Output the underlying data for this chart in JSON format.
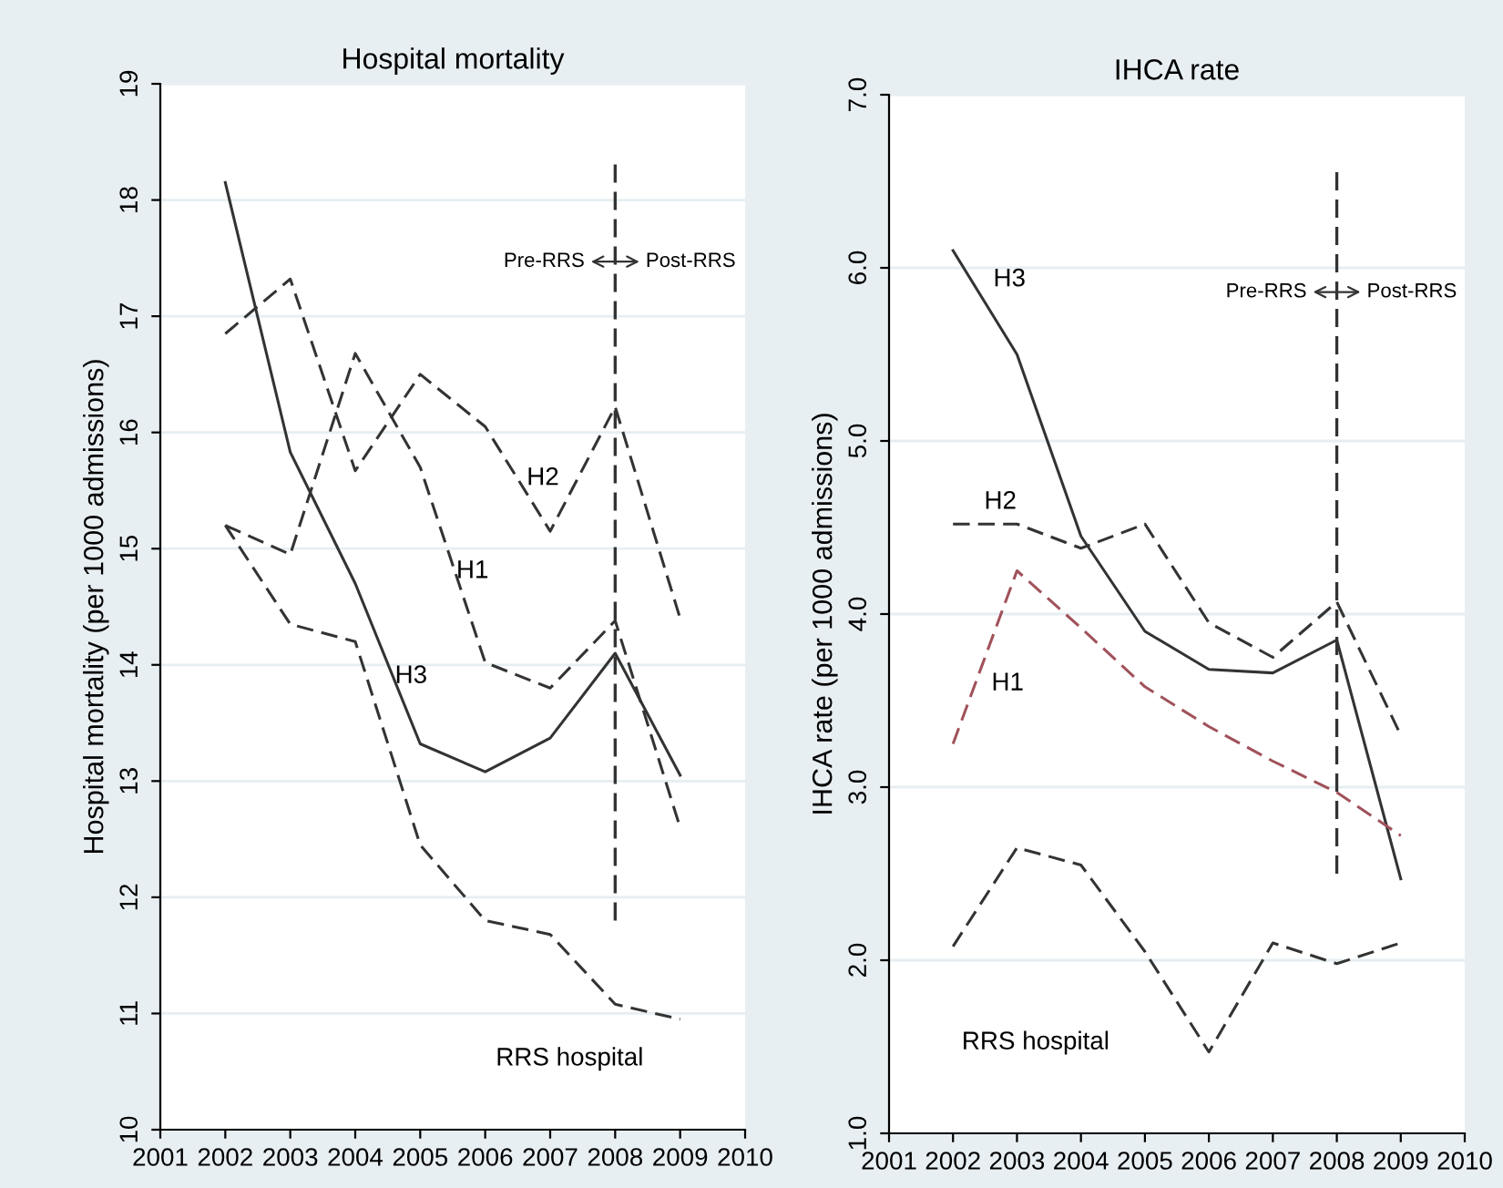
{
  "chart_data": [
    {
      "type": "line",
      "title": "Hospital mortality",
      "ylabel": "Hospital mortality (per 1000 admissions)",
      "x": [
        2002,
        2003,
        2004,
        2005,
        2006,
        2007,
        2008,
        2009
      ],
      "series": [
        {
          "name": "H3",
          "color": "#333333",
          "line_style": "solid",
          "values": [
            18.15,
            15.83,
            14.7,
            13.32,
            13.08,
            13.37,
            14.1,
            13.05
          ]
        },
        {
          "name": "H2",
          "color": "#333333",
          "line_style": "dashed",
          "values": [
            16.85,
            17.32,
            15.67,
            16.5,
            16.05,
            15.15,
            16.22,
            14.4
          ]
        },
        {
          "name": "H1",
          "color": "#333333",
          "line_style": "dashed",
          "values": [
            15.2,
            14.95,
            16.68,
            15.7,
            14.02,
            13.8,
            14.38,
            12.6
          ]
        },
        {
          "name": "RRS hospital",
          "color": "#333333",
          "line_style": "dashed",
          "values": [
            15.2,
            14.35,
            14.2,
            12.45,
            11.8,
            11.68,
            11.08,
            10.95
          ]
        }
      ],
      "xlim": [
        2001,
        2010
      ],
      "xticks": [
        2001,
        2002,
        2003,
        2004,
        2005,
        2006,
        2007,
        2008,
        2009,
        2010
      ],
      "ylim": [
        10,
        19
      ],
      "yticks": [
        10,
        11,
        12,
        13,
        14,
        15,
        16,
        17,
        18,
        19
      ],
      "grid": "y",
      "ref_lines": [
        {
          "axis": "x",
          "value": 2008,
          "color": "#333333",
          "line_style": "dashed"
        }
      ],
      "annotations": [
        "Pre-RRS",
        "Post-RRS"
      ]
    },
    {
      "type": "line",
      "title": "IHCA rate",
      "ylabel": "IHCA rate (per 1000 admissions)",
      "x": [
        2002,
        2003,
        2004,
        2005,
        2006,
        2007,
        2008,
        2009
      ],
      "series": [
        {
          "name": "H3",
          "color": "#333333",
          "line_style": "solid",
          "values": [
            6.1,
            5.5,
            4.45,
            3.9,
            3.68,
            3.66,
            3.85,
            2.47
          ]
        },
        {
          "name": "H2",
          "color": "#333333",
          "line_style": "dashed",
          "values": [
            4.52,
            4.52,
            4.38,
            4.52,
            3.95,
            3.75,
            4.07,
            3.3
          ]
        },
        {
          "name": "H1",
          "color": "#a0525a",
          "line_style": "dashed",
          "values": [
            3.25,
            4.25,
            3.92,
            3.58,
            3.35,
            3.15,
            2.97,
            2.72
          ]
        },
        {
          "name": "RRS hospital",
          "color": "#333333",
          "line_style": "dashed",
          "values": [
            2.08,
            2.65,
            2.55,
            2.05,
            1.47,
            2.1,
            1.98,
            2.1
          ]
        }
      ],
      "xlim": [
        2001,
        2010
      ],
      "xticks": [
        2001,
        2002,
        2003,
        2004,
        2005,
        2006,
        2007,
        2008,
        2009,
        2010
      ],
      "ylim": [
        1,
        7
      ],
      "yticks": [
        {
          "value": 1,
          "label": "1.0"
        },
        {
          "value": 2,
          "label": "2.0"
        },
        {
          "value": 3,
          "label": "3.0"
        },
        {
          "value": 4,
          "label": "4.0"
        },
        {
          "value": 5,
          "label": "5.0"
        },
        {
          "value": 6,
          "label": "6.0"
        },
        {
          "value": 7,
          "label": "7.0"
        }
      ],
      "grid": "y",
      "ref_lines": [
        {
          "axis": "x",
          "value": 2008,
          "color": "#333333",
          "line_style": "dashed"
        }
      ],
      "annotations": [
        "Pre-RRS",
        "Post-RRS"
      ]
    }
  ]
}
